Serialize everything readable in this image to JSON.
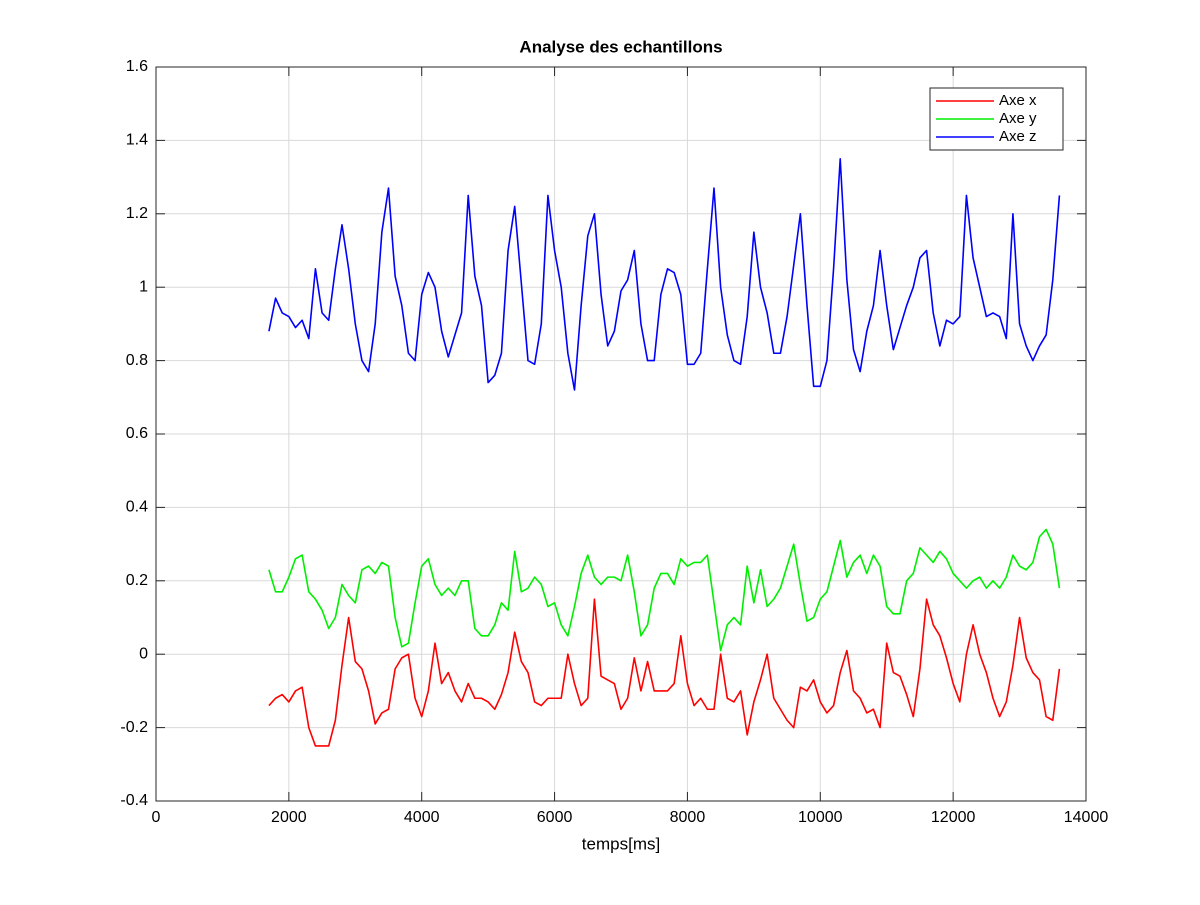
{
  "chart_data": {
    "type": "line",
    "title": "Analyse des echantillons",
    "xlabel": "temps[ms]",
    "xlim": [
      0,
      14000
    ],
    "ylim": [
      -0.4,
      1.6
    ],
    "xticks": [
      0,
      2000,
      4000,
      6000,
      8000,
      10000,
      12000,
      14000
    ],
    "yticks": [
      -0.4,
      -0.2,
      0,
      0.2,
      0.4,
      0.6,
      0.8,
      1,
      1.2,
      1.4,
      1.6
    ],
    "grid": true,
    "legend_position": "upper-right",
    "x": [
      1700,
      1800,
      1900,
      2000,
      2100,
      2200,
      2300,
      2400,
      2500,
      2600,
      2700,
      2800,
      2900,
      3000,
      3100,
      3200,
      3300,
      3400,
      3500,
      3600,
      3700,
      3800,
      3900,
      4000,
      4100,
      4200,
      4300,
      4400,
      4500,
      4600,
      4700,
      4800,
      4900,
      5000,
      5100,
      5200,
      5300,
      5400,
      5500,
      5600,
      5700,
      5800,
      5900,
      6000,
      6100,
      6200,
      6300,
      6400,
      6500,
      6600,
      6700,
      6800,
      6900,
      7000,
      7100,
      7200,
      7300,
      7400,
      7500,
      7600,
      7700,
      7800,
      7900,
      8000,
      8100,
      8200,
      8300,
      8400,
      8500,
      8600,
      8700,
      8800,
      8900,
      9000,
      9100,
      9200,
      9300,
      9400,
      9500,
      9600,
      9700,
      9800,
      9900,
      10000,
      10100,
      10200,
      10300,
      10400,
      10500,
      10600,
      10700,
      10800,
      10900,
      11000,
      11100,
      11200,
      11300,
      11400,
      11500,
      11600,
      11700,
      11800,
      11900,
      12000,
      12100,
      12200,
      12300,
      12400,
      12500,
      12600,
      12700,
      12800,
      12900,
      13000,
      13100,
      13200,
      13300,
      13400,
      13500,
      13600
    ],
    "series": [
      {
        "name": "Axe x",
        "color": "#ff0000",
        "values": [
          -0.14,
          -0.12,
          -0.11,
          -0.13,
          -0.1,
          -0.09,
          -0.2,
          -0.25,
          -0.25,
          -0.25,
          -0.18,
          -0.03,
          0.1,
          -0.02,
          -0.04,
          -0.1,
          -0.19,
          -0.16,
          -0.15,
          -0.04,
          -0.01,
          0,
          -0.12,
          -0.17,
          -0.1,
          0.03,
          -0.08,
          -0.05,
          -0.1,
          -0.13,
          -0.08,
          -0.12,
          -0.12,
          -0.13,
          -0.15,
          -0.11,
          -0.05,
          0.06,
          -0.02,
          -0.05,
          -0.13,
          -0.14,
          -0.12,
          -0.12,
          -0.12,
          0,
          -0.08,
          -0.14,
          -0.12,
          0.15,
          -0.06,
          -0.07,
          -0.08,
          -0.15,
          -0.12,
          -0.01,
          -0.1,
          -0.02,
          -0.1,
          -0.1,
          -0.1,
          -0.08,
          0.05,
          -0.08,
          -0.14,
          -0.12,
          -0.15,
          -0.15,
          0,
          -0.12,
          -0.13,
          -0.1,
          -0.22,
          -0.13,
          -0.07,
          0,
          -0.12,
          -0.15,
          -0.18,
          -0.2,
          -0.09,
          -0.1,
          -0.07,
          -0.13,
          -0.16,
          -0.14,
          -0.05,
          0.01,
          -0.1,
          -0.12,
          -0.16,
          -0.15,
          -0.2,
          0.03,
          -0.05,
          -0.06,
          -0.11,
          -0.17,
          -0.04,
          0.15,
          0.08,
          0.05,
          -0.01,
          -0.08,
          -0.13,
          0,
          0.08,
          0,
          -0.05,
          -0.12,
          -0.17,
          -0.13,
          -0.03,
          0.1,
          -0.01,
          -0.05,
          -0.07,
          -0.17,
          -0.18,
          -0.04
        ]
      },
      {
        "name": "Axe y",
        "color": "#00ee00",
        "values": [
          0.23,
          0.17,
          0.17,
          0.21,
          0.26,
          0.27,
          0.17,
          0.15,
          0.12,
          0.07,
          0.1,
          0.19,
          0.16,
          0.14,
          0.23,
          0.24,
          0.22,
          0.25,
          0.24,
          0.1,
          0.02,
          0.03,
          0.14,
          0.24,
          0.26,
          0.19,
          0.16,
          0.18,
          0.16,
          0.2,
          0.2,
          0.07,
          0.05,
          0.05,
          0.08,
          0.14,
          0.12,
          0.28,
          0.17,
          0.18,
          0.21,
          0.19,
          0.13,
          0.14,
          0.08,
          0.05,
          0.13,
          0.22,
          0.27,
          0.21,
          0.19,
          0.21,
          0.21,
          0.2,
          0.27,
          0.17,
          0.05,
          0.08,
          0.18,
          0.22,
          0.22,
          0.19,
          0.26,
          0.24,
          0.25,
          0.25,
          0.27,
          0.14,
          0.01,
          0.08,
          0.1,
          0.08,
          0.24,
          0.14,
          0.23,
          0.13,
          0.15,
          0.18,
          0.24,
          0.3,
          0.19,
          0.09,
          0.1,
          0.15,
          0.17,
          0.24,
          0.31,
          0.21,
          0.25,
          0.27,
          0.22,
          0.27,
          0.24,
          0.13,
          0.11,
          0.11,
          0.2,
          0.22,
          0.29,
          0.27,
          0.25,
          0.28,
          0.26,
          0.22,
          0.2,
          0.18,
          0.2,
          0.21,
          0.18,
          0.2,
          0.18,
          0.21,
          0.27,
          0.24,
          0.23,
          0.25,
          0.32,
          0.34,
          0.3,
          0.18
        ]
      },
      {
        "name": "Axe z",
        "color": "#0000ff",
        "values": [
          0.88,
          0.97,
          0.93,
          0.92,
          0.89,
          0.91,
          0.86,
          1.05,
          0.93,
          0.91,
          1.05,
          1.17,
          1.05,
          0.9,
          0.8,
          0.77,
          0.9,
          1.15,
          1.27,
          1.03,
          0.95,
          0.82,
          0.8,
          0.98,
          1.04,
          1,
          0.88,
          0.81,
          0.87,
          0.93,
          1.25,
          1.03,
          0.95,
          0.74,
          0.76,
          0.82,
          1.1,
          1.22,
          1.01,
          0.8,
          0.79,
          0.9,
          1.25,
          1.1,
          1,
          0.82,
          0.72,
          0.95,
          1.14,
          1.2,
          0.98,
          0.84,
          0.88,
          0.99,
          1.02,
          1.1,
          0.9,
          0.8,
          0.8,
          0.98,
          1.05,
          1.04,
          0.98,
          0.79,
          0.79,
          0.82,
          1.05,
          1.27,
          1,
          0.87,
          0.8,
          0.79,
          0.92,
          1.15,
          1,
          0.93,
          0.82,
          0.82,
          0.92,
          1.06,
          1.2,
          0.95,
          0.73,
          0.73,
          0.8,
          1.05,
          1.35,
          1.02,
          0.83,
          0.77,
          0.88,
          0.95,
          1.1,
          0.95,
          0.83,
          0.89,
          0.95,
          1,
          1.08,
          1.1,
          0.93,
          0.84,
          0.91,
          0.9,
          0.92,
          1.25,
          1.08,
          1,
          0.92,
          0.93,
          0.92,
          0.86,
          1.2,
          0.9,
          0.84,
          0.8,
          0.84,
          0.87,
          1.02,
          1.25
        ]
      }
    ]
  }
}
